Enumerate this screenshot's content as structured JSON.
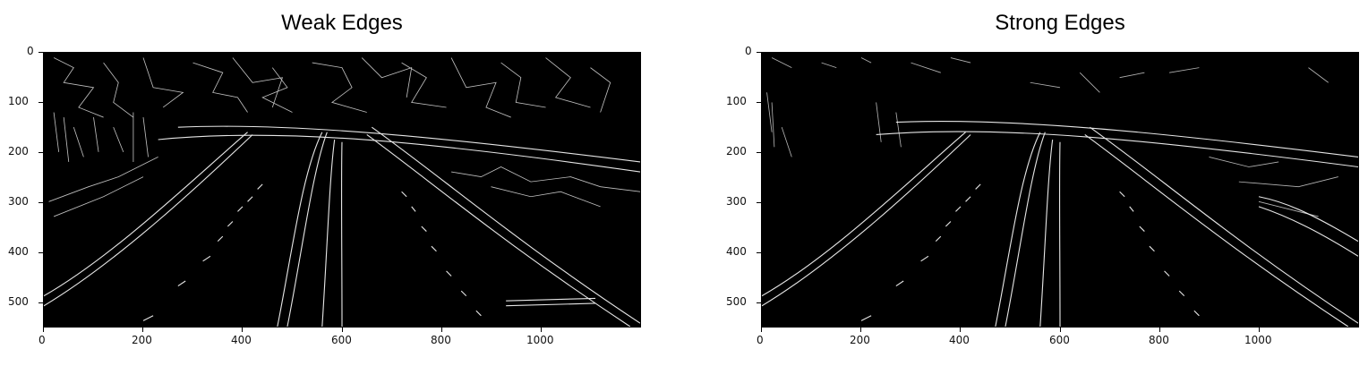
{
  "panels": [
    {
      "id": "weak",
      "title": "Weak Edges",
      "x_ticks": [
        "0",
        "200",
        "400",
        "600",
        "800",
        "1000"
      ],
      "y_ticks": [
        "0",
        "100",
        "200",
        "300",
        "400",
        "500"
      ]
    },
    {
      "id": "strong",
      "title": "Strong Edges",
      "x_ticks": [
        "0",
        "200",
        "400",
        "600",
        "800",
        "1000"
      ],
      "y_ticks": [
        "0",
        "100",
        "200",
        "300",
        "400",
        "500"
      ]
    }
  ],
  "image": {
    "width": 1200,
    "height": 552,
    "colormap": "gray",
    "background": "#000000",
    "edge_color": "#ffffff"
  },
  "tick_values": {
    "x": [
      0,
      200,
      400,
      600,
      800,
      1000
    ],
    "y": [
      0,
      100,
      200,
      300,
      400,
      500
    ]
  }
}
